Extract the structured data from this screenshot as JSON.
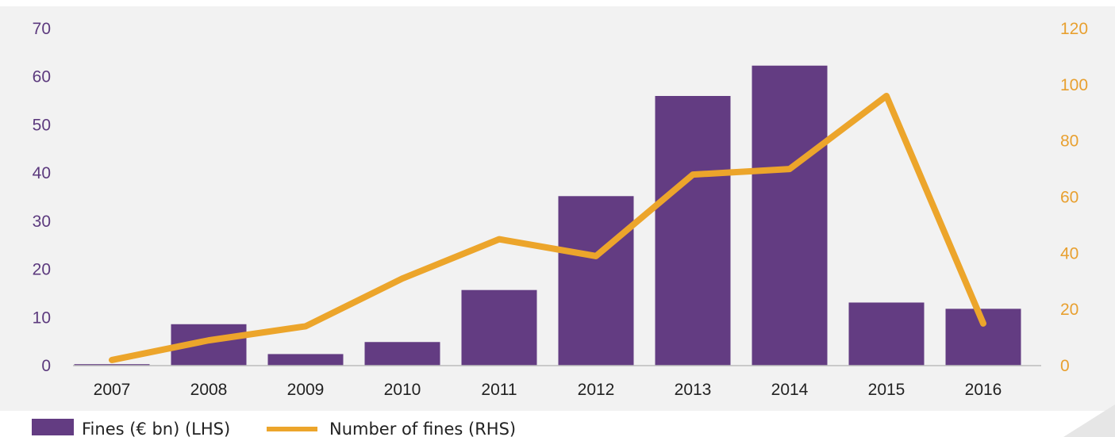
{
  "chart_data": {
    "type": "bar",
    "categories": [
      "2007",
      "2008",
      "2009",
      "2010",
      "2011",
      "2012",
      "2013",
      "2014",
      "2015",
      "2016"
    ],
    "series": [
      {
        "name": "Fines (€ bn) (LHS)",
        "type": "bar",
        "axis": "left",
        "values": [
          0.3,
          8.6,
          2.4,
          4.9,
          15.7,
          35.2,
          56.0,
          62.3,
          13.1,
          11.8
        ],
        "color": "#633c82"
      },
      {
        "name": "Number of fines (RHS)",
        "type": "line",
        "axis": "right",
        "values": [
          2,
          9,
          14,
          31,
          45,
          39,
          68,
          70,
          96,
          15
        ],
        "color": "#eca52b"
      }
    ],
    "left_axis": {
      "ylim": [
        0,
        70
      ],
      "ticks": [
        "0",
        "10",
        "20",
        "30",
        "40",
        "50",
        "60",
        "70"
      ],
      "color": "#5c3a7e"
    },
    "right_axis": {
      "ylim": [
        0,
        120
      ],
      "ticks": [
        "0",
        "20",
        "40",
        "60",
        "80",
        "100",
        "120"
      ],
      "color": "#e8a030"
    },
    "grid": false,
    "legend_position": "bottom-left",
    "background": "#f2f2f2"
  }
}
